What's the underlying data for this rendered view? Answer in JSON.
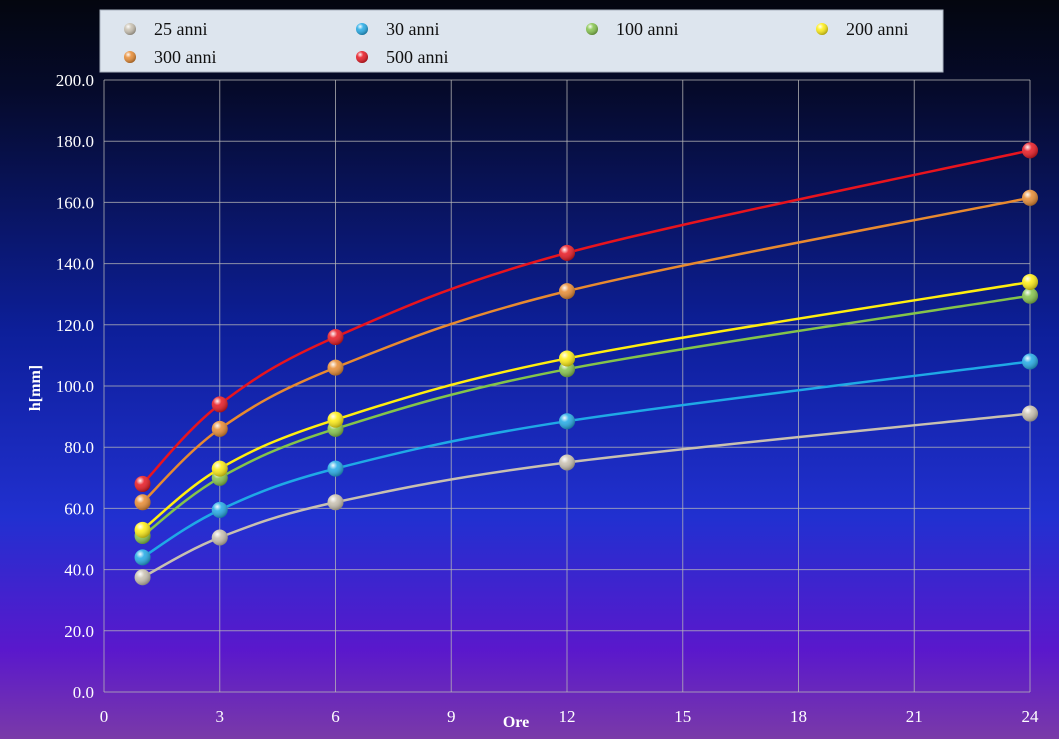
{
  "chart_data": {
    "type": "line",
    "title": "",
    "xlabel": "Ore",
    "ylabel": "h[mm]",
    "xlim": [
      0,
      24
    ],
    "ylim": [
      0,
      200
    ],
    "x_ticks": [
      "0",
      "3",
      "6",
      "9",
      "12",
      "15",
      "18",
      "21",
      "24"
    ],
    "y_ticks": [
      "0.0",
      "20.0",
      "40.0",
      "60.0",
      "80.0",
      "100.0",
      "120.0",
      "140.0",
      "160.0",
      "180.0",
      "200.0"
    ],
    "grid": true,
    "legend_position": "top",
    "x": [
      1,
      3,
      6,
      12,
      24
    ],
    "series": [
      {
        "name": "25 anni",
        "color": "#c8c0b0",
        "values": [
          37.5,
          50.5,
          62,
          75,
          91
        ]
      },
      {
        "name": "30 anni",
        "color": "#1fa9e6",
        "values": [
          44,
          59.5,
          73,
          88.5,
          108
        ]
      },
      {
        "name": "100 anni",
        "color": "#84c44a",
        "values": [
          51,
          70,
          86,
          105.5,
          129.5
        ]
      },
      {
        "name": "200 anni",
        "color": "#ffee10",
        "values": [
          53,
          73,
          89,
          109,
          134
        ]
      },
      {
        "name": "300 anni",
        "color": "#e88a30",
        "values": [
          62,
          86,
          106,
          131,
          161.5
        ]
      },
      {
        "name": "500 anni",
        "color": "#e8141e",
        "values": [
          68,
          94,
          116,
          143.5,
          177
        ]
      }
    ]
  }
}
